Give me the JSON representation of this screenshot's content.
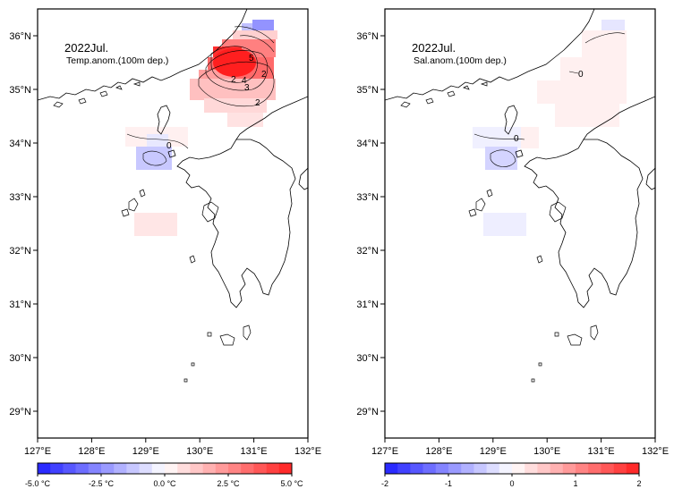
{
  "panels": [
    {
      "title": "2022Jul.",
      "subtitle": "Temp.anom.(100m dep.)",
      "colorbar_labels": [
        "-5.0 °C",
        "-2.5 °C",
        "0.0 °C",
        "2.5 °C",
        "5.0 °C"
      ],
      "contour_labels": [
        "5",
        "4",
        "3",
        "2",
        "2",
        "2",
        "0"
      ]
    },
    {
      "title": "2022Jul.",
      "subtitle": "Sal.anom.(100m dep.)",
      "colorbar_labels": [
        "-2",
        "-1",
        "0",
        "1",
        "2"
      ],
      "contour_labels": [
        "0",
        "0"
      ]
    }
  ],
  "axes": {
    "lon_ticks": [
      "127°E",
      "128°E",
      "129°E",
      "130°E",
      "131°E",
      "132°E"
    ],
    "lat_ticks": [
      "36°N",
      "35°N",
      "34°N",
      "33°N",
      "32°N",
      "31°N",
      "30°N",
      "29°N"
    ],
    "lon_range": [
      127,
      132
    ],
    "lat_range": [
      28.5,
      36.5
    ]
  },
  "colors": {
    "negative_strong": "#1f1fff",
    "positive_strong": "#ff1f1f",
    "neutral": "#ffffff",
    "coast": "#000000"
  },
  "colorbar_steps": 20
}
